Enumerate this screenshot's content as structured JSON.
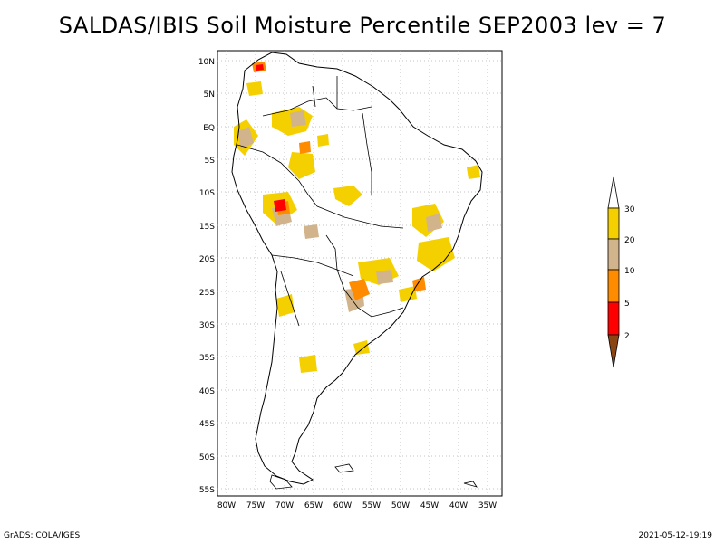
{
  "title": "SALDAS/IBIS Soil Moisture Percentile SEP2003 lev = 7",
  "footer_left": "GrADS: COLA/IGES",
  "footer_right": "2021-05-12-19:19",
  "map": {
    "lat_labels": [
      "10N",
      "5N",
      "EQ",
      "5S",
      "10S",
      "15S",
      "20S",
      "25S",
      "30S",
      "35S",
      "40S",
      "45S",
      "50S",
      "55S"
    ],
    "lon_labels": [
      "80W",
      "75W",
      "70W",
      "65W",
      "60W",
      "55W",
      "50W",
      "45W",
      "40W",
      "35W"
    ]
  },
  "legend": {
    "labels": [
      "30",
      "20",
      "10",
      "5",
      "2"
    ],
    "colors": {
      "above": "#ffffff",
      "c20_30": "#f5d000",
      "c10_20": "#d2b48c",
      "c5_10": "#ff8c00",
      "c2_5": "#ff0000",
      "below": "#8b4513"
    }
  }
}
